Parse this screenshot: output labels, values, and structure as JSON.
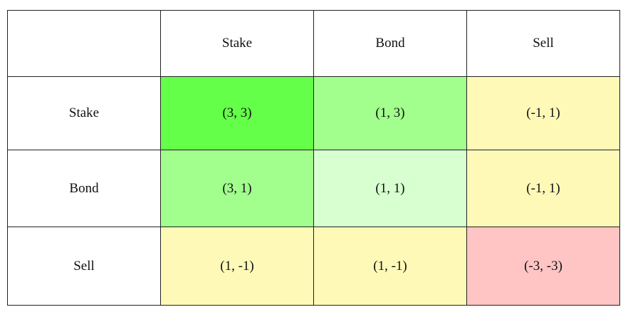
{
  "table": {
    "columns": [
      "Stake",
      "Bond",
      "Sell"
    ],
    "rows": [
      {
        "label": "Stake",
        "cells": [
          "(3, 3)",
          "(1, 3)",
          "(-1, 1)"
        ]
      },
      {
        "label": "Bond",
        "cells": [
          "(3, 1)",
          "(1, 1)",
          "(-1, 1)"
        ]
      },
      {
        "label": "Sell",
        "cells": [
          "(1, -1)",
          "(1, -1)",
          "(-3, -3)"
        ]
      }
    ]
  }
}
